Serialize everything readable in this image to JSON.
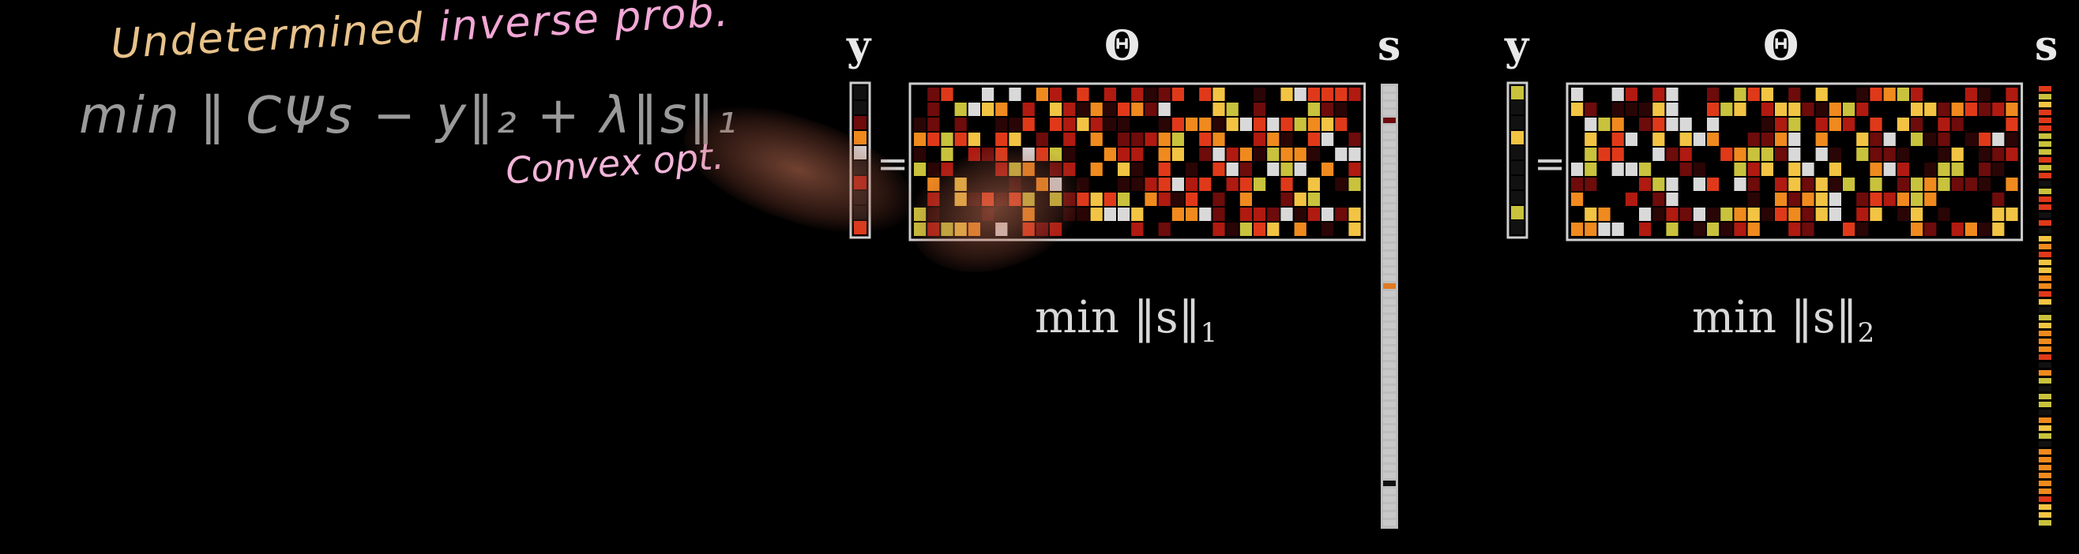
{
  "handwriting": {
    "line1_a": "Undetermined",
    "line1_b": "inverse prob.",
    "line2": "min ‖ CΨs − y‖₂ + λ‖s‖₁",
    "line3": "Convex opt."
  },
  "left_panel": {
    "y_label": "y",
    "theta_label": "Θ",
    "s_label": "s",
    "equals": "=",
    "objective": "min ‖s‖",
    "objective_sub": "1"
  },
  "right_panel": {
    "y_label": "y",
    "theta_label": "Θ",
    "s_label": "s",
    "equals": "=",
    "objective": "min ‖s‖",
    "objective_sub": "2"
  },
  "colors": {
    "background": "#000000",
    "cell_palette": [
      "#2a0505",
      "#6e0b0b",
      "#b01a10",
      "#e0391a",
      "#f08a1e",
      "#f3c443",
      "#c9c23c",
      "#d9d9d9"
    ]
  }
}
